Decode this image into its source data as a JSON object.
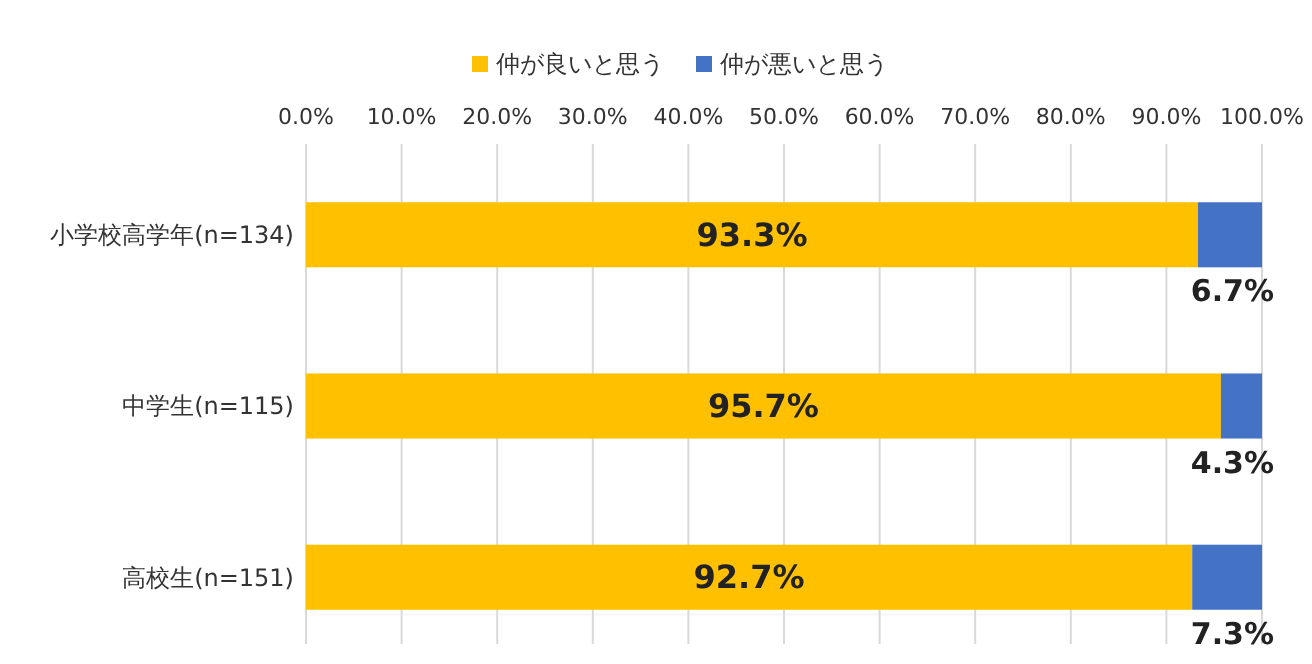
{
  "chart_data": {
    "type": "bar",
    "orientation": "horizontal",
    "stacked": true,
    "categories": [
      "小学校高学年(n=134)",
      "中学生(n=115)",
      "高校生(n=151)"
    ],
    "series": [
      {
        "name": "仲が良いと思う",
        "color": "#ffc000",
        "values": [
          93.3,
          95.7,
          92.7
        ],
        "value_labels": [
          "93.3%",
          "95.7%",
          "92.7%"
        ]
      },
      {
        "name": "仲が悪いと思う",
        "color": "#4472c4",
        "values": [
          6.7,
          4.3,
          7.3
        ],
        "value_labels": [
          "6.7%",
          "4.3%",
          "7.3%"
        ]
      }
    ],
    "xlim": [
      0,
      100
    ],
    "xticks": [
      {
        "value": 0,
        "label": "0.0%"
      },
      {
        "value": 10,
        "label": "10.0%"
      },
      {
        "value": 20,
        "label": "20.0%"
      },
      {
        "value": 30,
        "label": "30.0%"
      },
      {
        "value": 40,
        "label": "40.0%"
      },
      {
        "value": 50,
        "label": "50.0%"
      },
      {
        "value": 60,
        "label": "60.0%"
      },
      {
        "value": 70,
        "label": "70.0%"
      },
      {
        "value": 80,
        "label": "80.0%"
      },
      {
        "value": 90,
        "label": "90.0%"
      },
      {
        "value": 100,
        "label": "100.0%"
      }
    ],
    "grid": "x",
    "legend": "top"
  }
}
